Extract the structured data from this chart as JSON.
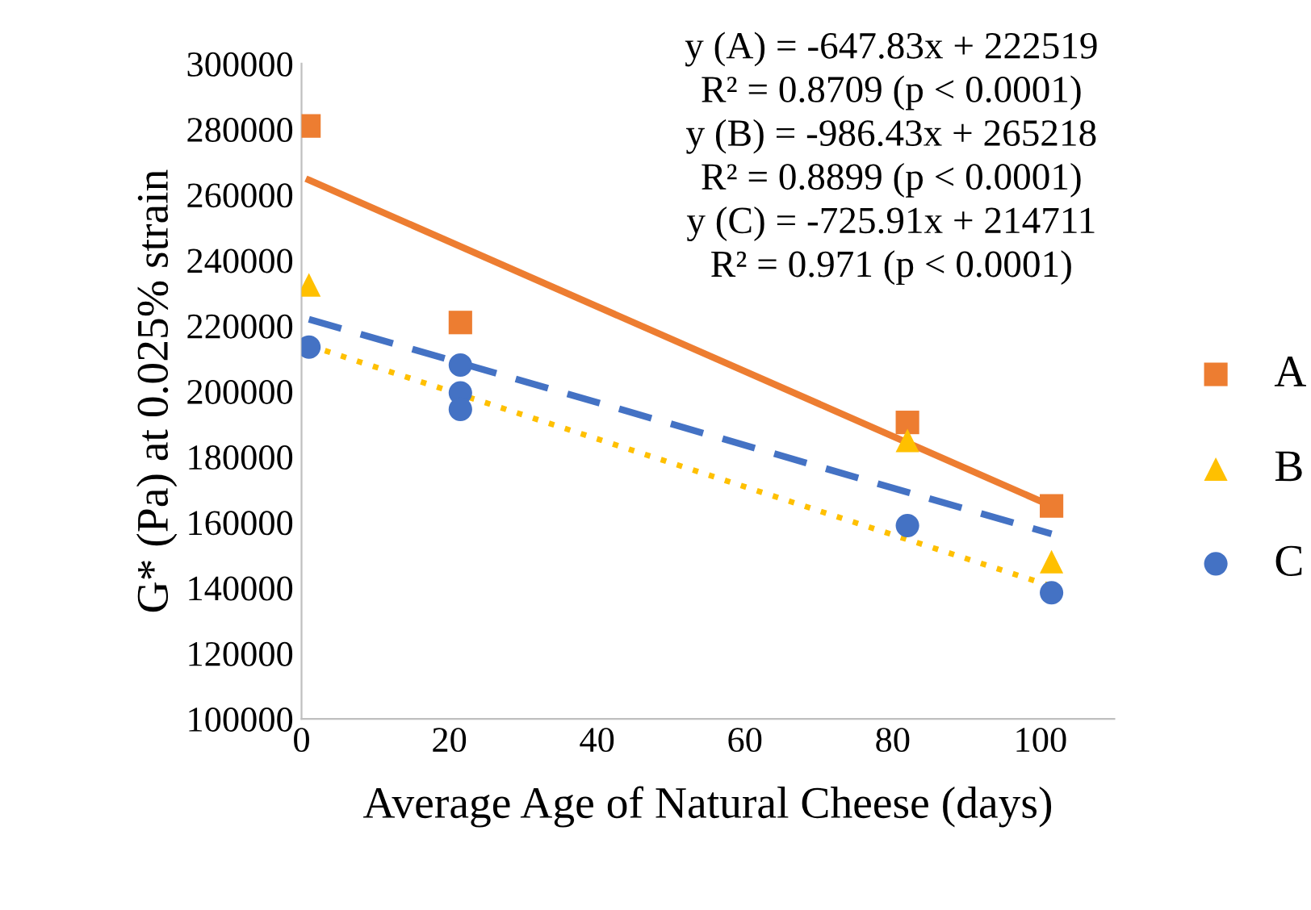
{
  "chart_data": {
    "type": "scatter",
    "xlabel": "Average Age of Natural Cheese (days)",
    "ylabel": "G* (Pa) at 0.025% strain",
    "xlim": [
      0,
      110
    ],
    "xticks": [
      0,
      20,
      40,
      60,
      80,
      100
    ],
    "ylim": [
      100000,
      300000
    ],
    "yticks": [
      100000,
      120000,
      140000,
      160000,
      180000,
      200000,
      220000,
      240000,
      260000,
      280000,
      300000
    ],
    "grid": false,
    "legend": "right",
    "annotations": [
      "y (A) = -647.83x + 222519",
      "R² = 0.8709 (p < 0.0001)",
      "y (B) = -986.43x + 265218",
      "R² = 0.8899 (p < 0.0001)",
      "y (C) = -725.91x + 214711",
      "R² = 0.971 (p < 0.0001)"
    ],
    "series": [
      {
        "name": "A",
        "color": "#ed7d31",
        "marker": "square",
        "x": [
          1,
          21.5,
          82,
          101.5
        ],
        "values": [
          281000,
          221000,
          190500,
          165000
        ]
      },
      {
        "name": "B",
        "color": "#ffc000",
        "marker": "triangle",
        "x": [
          1,
          21.5,
          82,
          101.5
        ],
        "values": [
          232500,
          null,
          185000,
          148000
        ]
      },
      {
        "name": "C",
        "color": "#4472c4",
        "marker": "circle",
        "x": [
          1,
          21.5,
          21.5,
          21.5,
          82,
          101.5
        ],
        "values": [
          213500,
          208000,
          199500,
          194500,
          159000,
          138500
        ]
      },
      {
        "type": "line",
        "color": "#ed7d31",
        "line_style": "solid",
        "marker": "none",
        "x": [
          1,
          101.5
        ],
        "values": [
          264500,
          165000
        ]
      },
      {
        "type": "line",
        "color": "#4472c4",
        "line_style": "dashed",
        "marker": "none",
        "x": [
          1,
          101.5
        ],
        "values": [
          222000,
          156500
        ]
      },
      {
        "type": "line",
        "color": "#ffc000",
        "line_style": "dotted",
        "marker": "none",
        "x": [
          1,
          101.5
        ],
        "values": [
          214000,
          140500
        ]
      }
    ]
  }
}
